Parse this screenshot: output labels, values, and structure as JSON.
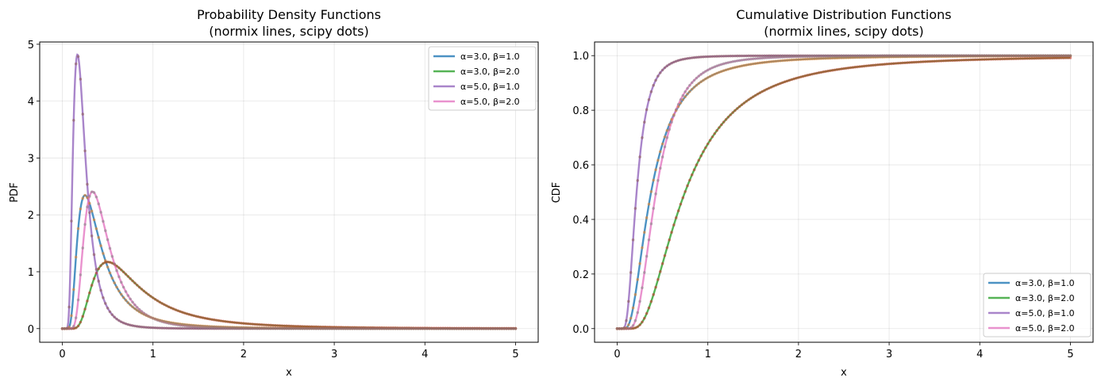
{
  "chart_data": [
    {
      "type": "line",
      "title": "Probability Density Functions",
      "subtitle": "(normix lines, scipy dots)",
      "xlabel": "x",
      "ylabel": "PDF",
      "function": "pdf",
      "x_range": [
        0,
        5
      ],
      "xlim": [
        -0.25,
        5.25
      ],
      "ylim": [
        -0.24,
        5.04
      ],
      "xticks": [
        "0",
        "1",
        "2",
        "3",
        "4",
        "5"
      ],
      "yticks": [
        "0",
        "1",
        "2",
        "3",
        "4",
        "5"
      ],
      "grid": true,
      "legend_placement": "upper right",
      "series": [
        {
          "name": "α=3.0, β=1.0",
          "alpha": 3.0,
          "beta": 1.0,
          "color": "#1f77b4",
          "dot_color": "#ff7f0e"
        },
        {
          "name": "α=3.0, β=2.0",
          "alpha": 3.0,
          "beta": 2.0,
          "color": "#2ca02c",
          "dot_color": "#d62728"
        },
        {
          "name": "α=5.0, β=1.0",
          "alpha": 5.0,
          "beta": 1.0,
          "color": "#9467bd",
          "dot_color": "#8c564b"
        },
        {
          "name": "α=5.0, β=2.0",
          "alpha": 5.0,
          "beta": 2.0,
          "color": "#e377c2",
          "dot_color": "#7f7f7f"
        }
      ],
      "peaks": [
        {
          "x": 0.25,
          "y": 2.34
        },
        {
          "x": 0.5,
          "y": 1.17
        },
        {
          "x": 0.167,
          "y": 4.82
        },
        {
          "x": 0.333,
          "y": 2.41
        }
      ]
    },
    {
      "type": "line",
      "title": "Cumulative Distribution Functions",
      "subtitle": "(normix lines, scipy dots)",
      "xlabel": "x",
      "ylabel": "CDF",
      "function": "cdf",
      "x_range": [
        0,
        5
      ],
      "xlim": [
        -0.25,
        5.25
      ],
      "ylim": [
        -0.05,
        1.05
      ],
      "xticks": [
        "0",
        "1",
        "2",
        "3",
        "4",
        "5"
      ],
      "yticks": [
        "0.0",
        "0.2",
        "0.4",
        "0.6",
        "0.8",
        "1.0"
      ],
      "grid": true,
      "legend_placement": "lower right",
      "series": [
        {
          "name": "α=3.0, β=1.0",
          "alpha": 3.0,
          "beta": 1.0,
          "color": "#1f77b4",
          "dot_color": "#ff7f0e"
        },
        {
          "name": "α=3.0, β=2.0",
          "alpha": 3.0,
          "beta": 2.0,
          "color": "#2ca02c",
          "dot_color": "#d62728"
        },
        {
          "name": "α=5.0, β=1.0",
          "alpha": 5.0,
          "beta": 1.0,
          "color": "#9467bd",
          "dot_color": "#8c564b"
        },
        {
          "name": "α=5.0, β=2.0",
          "alpha": 5.0,
          "beta": 2.0,
          "color": "#e377c2",
          "dot_color": "#7f7f7f"
        }
      ]
    }
  ]
}
